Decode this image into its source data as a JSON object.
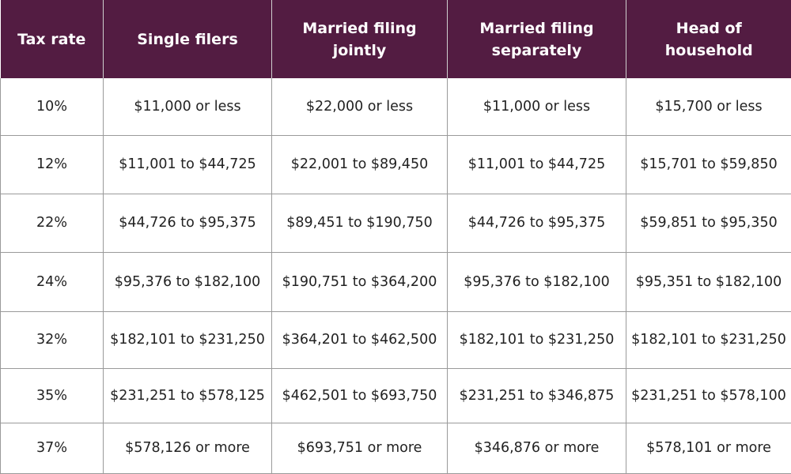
{
  "colors": {
    "header_background": "#531c42",
    "header_text": "#ffffff",
    "grid_line": "#9a9a9a",
    "cell_text": "#222222"
  },
  "table": {
    "headers": [
      "Tax rate",
      "Single filers",
      "Married filing jointly",
      "Married filing separately",
      "Head of household"
    ],
    "rows": [
      [
        "10%",
        "$11,000 or less",
        "$22,000 or less",
        "$11,000 or less",
        "$15,700 or less"
      ],
      [
        "12%",
        "$11,001 to $44,725",
        "$22,001 to $89,450",
        "$11,001 to $44,725",
        "$15,701 to $59,850"
      ],
      [
        "22%",
        "$44,726 to $95,375",
        "$89,451 to $190,750",
        "$44,726 to $95,375",
        "$59,851 to $95,350"
      ],
      [
        "24%",
        "$95,376 to $182,100",
        "$190,751 to $364,200",
        "$95,376 to $182,100",
        "$95,351 to $182,100"
      ],
      [
        "32%",
        "$182,101 to $231,250",
        "$364,201 to $462,500",
        "$182,101 to $231,250",
        "$182,101 to $231,250"
      ],
      [
        "35%",
        "$231,251 to $578,125",
        "$462,501 to $693,750",
        "$231,251 to $346,875",
        "$231,251 to $578,100"
      ],
      [
        "37%",
        "$578,126 or more",
        "$693,751 or more",
        "$346,876 or more",
        "$578,101 or more"
      ]
    ]
  }
}
